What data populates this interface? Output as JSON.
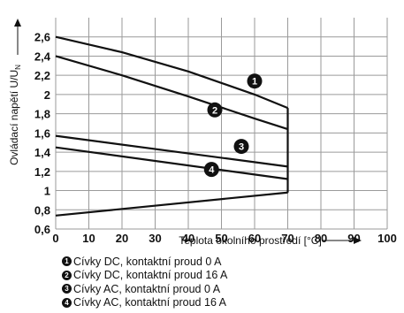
{
  "chart_data": {
    "type": "line",
    "xlabel": "Teplota okolního prostředí [°C]",
    "ylabel_main": "Ovládací napětí U/U",
    "ylabel_sub": "N",
    "xlim": [
      0,
      100
    ],
    "ylim": [
      0.6,
      2.8
    ],
    "x_ticks": [
      0,
      10,
      20,
      30,
      40,
      50,
      60,
      70,
      80,
      90,
      100
    ],
    "y_ticks": [
      0.6,
      0.8,
      1.0,
      1.2,
      1.4,
      1.6,
      1.8,
      2.0,
      2.2,
      2.4,
      2.6
    ],
    "y_tick_labels": [
      "0,6",
      "0,8",
      "1",
      "1,2",
      "1,4",
      "1,6",
      "1,8",
      "2",
      "2,2",
      "2,4",
      "2,6"
    ],
    "grid": true,
    "series": [
      {
        "marker": "1",
        "name": "Cívky DC, kontaktní proud 0 A",
        "x": [
          0,
          20,
          40,
          60,
          70
        ],
        "y": [
          2.6,
          2.44,
          2.24,
          2.0,
          1.86
        ],
        "label_at": [
          60,
          2.14
        ]
      },
      {
        "marker": "2",
        "name": "Cívky DC, kontaktní proud 16 A",
        "x": [
          0,
          20,
          40,
          60,
          70
        ],
        "y": [
          2.4,
          2.2,
          1.98,
          1.75,
          1.64
        ],
        "label_at": [
          48,
          1.84
        ]
      },
      {
        "marker": "3",
        "name": "Cívky AC, kontaktní proud 0 A",
        "x": [
          0,
          70
        ],
        "y": [
          1.57,
          1.25
        ],
        "label_at": [
          56,
          1.46
        ]
      },
      {
        "marker": "4",
        "name": "Cívky AC, kontaktní proud 16 A",
        "x": [
          0,
          70
        ],
        "y": [
          1.45,
          1.12
        ],
        "label_at": [
          47,
          1.22
        ]
      },
      {
        "marker": "",
        "name": "",
        "x": [
          0,
          70
        ],
        "y": [
          0.74,
          0.98
        ]
      }
    ],
    "vertical_line": {
      "x": 70,
      "y_from": 0.98,
      "y_to": 1.86
    }
  }
}
